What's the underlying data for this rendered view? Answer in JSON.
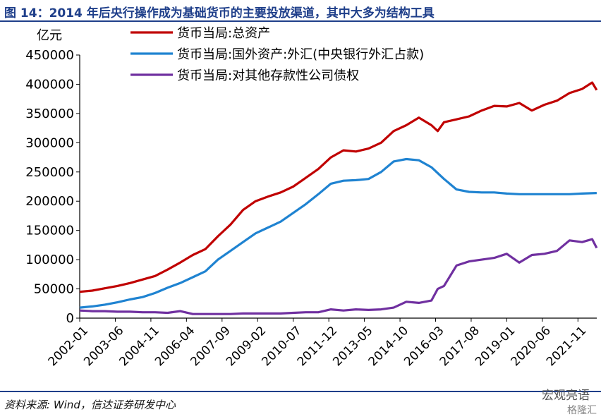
{
  "title": "图 14：2014 年后央行操作成为基础货币的主要投放渠道，其中大多为结构工具",
  "source": "资料来源: Wind，信达证券研发中心",
  "watermark": "宏观亮语",
  "watermark2": "格隆汇",
  "chart_data": {
    "type": "line",
    "ylabel": "亿元",
    "ylim": [
      0,
      450000
    ],
    "yticks": [
      0,
      50000,
      100000,
      150000,
      200000,
      250000,
      300000,
      350000,
      400000,
      450000
    ],
    "xlim": [
      2002.0,
      2022.583
    ],
    "xtick_labels": [
      "2002-01",
      "2003-06",
      "2004-11",
      "2006-04",
      "2007-09",
      "2009-02",
      "2010-07",
      "2011-12",
      "2013-05",
      "2014-10",
      "2016-03",
      "2017-08",
      "2019-01",
      "2020-06",
      "2021-11"
    ],
    "grid": false,
    "legend": "top-center",
    "series": [
      {
        "name": "货币当局:总资产",
        "color": "#c00000",
        "points": [
          [
            2002.0,
            45000
          ],
          [
            2002.5,
            47000
          ],
          [
            2003.0,
            51000
          ],
          [
            2003.5,
            55000
          ],
          [
            2004.0,
            60000
          ],
          [
            2004.5,
            66000
          ],
          [
            2005.0,
            72000
          ],
          [
            2005.5,
            83000
          ],
          [
            2006.0,
            95000
          ],
          [
            2006.5,
            108000
          ],
          [
            2007.0,
            118000
          ],
          [
            2007.5,
            140000
          ],
          [
            2008.0,
            160000
          ],
          [
            2008.5,
            185000
          ],
          [
            2009.0,
            200000
          ],
          [
            2009.5,
            208000
          ],
          [
            2010.0,
            215000
          ],
          [
            2010.5,
            225000
          ],
          [
            2011.0,
            240000
          ],
          [
            2011.5,
            255000
          ],
          [
            2012.0,
            275000
          ],
          [
            2012.5,
            287000
          ],
          [
            2013.0,
            285000
          ],
          [
            2013.5,
            290000
          ],
          [
            2014.0,
            300000
          ],
          [
            2014.5,
            320000
          ],
          [
            2015.0,
            330000
          ],
          [
            2015.5,
            343000
          ],
          [
            2016.0,
            330000
          ],
          [
            2016.25,
            320000
          ],
          [
            2016.5,
            335000
          ],
          [
            2017.0,
            340000
          ],
          [
            2017.5,
            345000
          ],
          [
            2018.0,
            355000
          ],
          [
            2018.5,
            363000
          ],
          [
            2019.0,
            362000
          ],
          [
            2019.5,
            368000
          ],
          [
            2020.0,
            355000
          ],
          [
            2020.5,
            365000
          ],
          [
            2021.0,
            372000
          ],
          [
            2021.5,
            385000
          ],
          [
            2022.0,
            392000
          ],
          [
            2022.4,
            403000
          ],
          [
            2022.58,
            390000
          ]
        ]
      },
      {
        "name": "货币当局:国外资产:外汇(中央银行外汇占款)",
        "color": "#1f83d1",
        "points": [
          [
            2002.0,
            18000
          ],
          [
            2002.5,
            20000
          ],
          [
            2003.0,
            23000
          ],
          [
            2003.5,
            27000
          ],
          [
            2004.0,
            32000
          ],
          [
            2004.5,
            36000
          ],
          [
            2005.0,
            43000
          ],
          [
            2005.5,
            52000
          ],
          [
            2006.0,
            60000
          ],
          [
            2006.5,
            70000
          ],
          [
            2007.0,
            80000
          ],
          [
            2007.5,
            100000
          ],
          [
            2008.0,
            115000
          ],
          [
            2008.5,
            130000
          ],
          [
            2009.0,
            145000
          ],
          [
            2009.5,
            155000
          ],
          [
            2010.0,
            165000
          ],
          [
            2010.5,
            180000
          ],
          [
            2011.0,
            195000
          ],
          [
            2011.5,
            212000
          ],
          [
            2012.0,
            230000
          ],
          [
            2012.5,
            235000
          ],
          [
            2013.0,
            236000
          ],
          [
            2013.5,
            238000
          ],
          [
            2014.0,
            250000
          ],
          [
            2014.5,
            268000
          ],
          [
            2015.0,
            272000
          ],
          [
            2015.5,
            270000
          ],
          [
            2016.0,
            258000
          ],
          [
            2016.5,
            238000
          ],
          [
            2017.0,
            220000
          ],
          [
            2017.5,
            216000
          ],
          [
            2018.0,
            215000
          ],
          [
            2018.5,
            215000
          ],
          [
            2019.0,
            213000
          ],
          [
            2019.5,
            212000
          ],
          [
            2020.0,
            212000
          ],
          [
            2020.5,
            212000
          ],
          [
            2021.0,
            212000
          ],
          [
            2021.5,
            212000
          ],
          [
            2022.0,
            213000
          ],
          [
            2022.58,
            214000
          ]
        ]
      },
      {
        "name": "货币当局:对其他存款性公司债权",
        "color": "#7030a0",
        "points": [
          [
            2002.0,
            13000
          ],
          [
            2002.5,
            12000
          ],
          [
            2003.0,
            12000
          ],
          [
            2003.5,
            11000
          ],
          [
            2004.0,
            11000
          ],
          [
            2004.5,
            10000
          ],
          [
            2005.0,
            10000
          ],
          [
            2005.5,
            9000
          ],
          [
            2006.0,
            12000
          ],
          [
            2006.5,
            7000
          ],
          [
            2007.0,
            7000
          ],
          [
            2007.5,
            7000
          ],
          [
            2008.0,
            7000
          ],
          [
            2008.5,
            8000
          ],
          [
            2009.0,
            8000
          ],
          [
            2009.5,
            8000
          ],
          [
            2010.0,
            8000
          ],
          [
            2010.5,
            9000
          ],
          [
            2011.0,
            10000
          ],
          [
            2011.5,
            10000
          ],
          [
            2012.0,
            15000
          ],
          [
            2012.5,
            13000
          ],
          [
            2013.0,
            15000
          ],
          [
            2013.5,
            14000
          ],
          [
            2014.0,
            15000
          ],
          [
            2014.5,
            18000
          ],
          [
            2015.0,
            28000
          ],
          [
            2015.5,
            26000
          ],
          [
            2016.0,
            30000
          ],
          [
            2016.25,
            50000
          ],
          [
            2016.5,
            55000
          ],
          [
            2017.0,
            90000
          ],
          [
            2017.5,
            97000
          ],
          [
            2018.0,
            100000
          ],
          [
            2018.5,
            103000
          ],
          [
            2019.0,
            110000
          ],
          [
            2019.5,
            95000
          ],
          [
            2020.0,
            108000
          ],
          [
            2020.5,
            110000
          ],
          [
            2021.0,
            115000
          ],
          [
            2021.5,
            133000
          ],
          [
            2022.0,
            130000
          ],
          [
            2022.4,
            135000
          ],
          [
            2022.58,
            120000
          ]
        ]
      }
    ]
  }
}
